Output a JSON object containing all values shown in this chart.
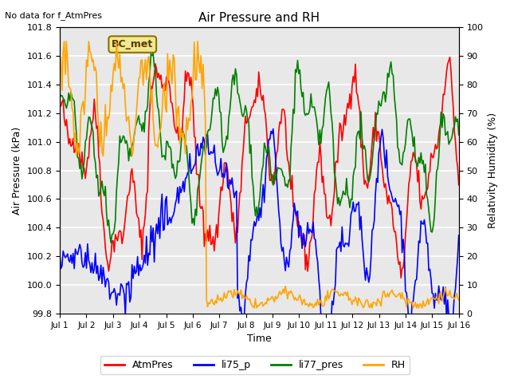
{
  "title": "Air Pressure and RH",
  "top_left_text": "No data for f_AtmPres",
  "xlabel": "Time",
  "ylabel_left": "Air Pressure (kPa)",
  "ylabel_right": "Relativity Humidity (%)",
  "annotation_box": "BC_met",
  "ylim_left": [
    99.8,
    101.8
  ],
  "ylim_right": [
    0,
    100
  ],
  "x_tick_labels": [
    "Jul 1",
    "Jul 2",
    "Jul 3",
    "Jul 4",
    "Jul 5",
    "Jul 6",
    "Jul 7",
    "Jul 8",
    "Jul 9",
    "Jul 10",
    "Jul 11",
    "Jul 12",
    "Jul 13",
    "Jul 14",
    "Jul 15",
    "Jul 16"
  ],
  "legend_labels": [
    "AtmPres",
    "li75_p",
    "li77_pres",
    "RH"
  ],
  "legend_colors": [
    "red",
    "blue",
    "green",
    "orange"
  ],
  "bg_color": "#e8e8e8",
  "grid_color": "white",
  "line_width": 1.2
}
